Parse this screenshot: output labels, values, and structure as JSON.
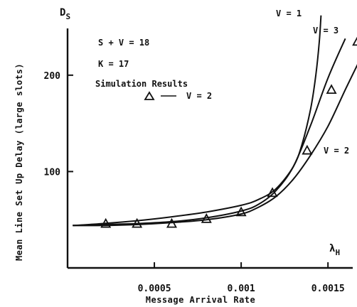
{
  "chart_data": {
    "type": "line",
    "xlabel": "Message Arrival Rate",
    "xlabel_symbol": "λ",
    "xlabel_symbol_sub": "H",
    "ylabel": "Mean Line Set Up Delay (large slots)",
    "ylabel_symbol": "D",
    "ylabel_symbol_sub": "S",
    "xlim": [
      0,
      0.0017
    ],
    "ylim": [
      0,
      250
    ],
    "x_axis_at": 0,
    "xticks": [
      {
        "value": 0.0005,
        "label": "0.0005"
      },
      {
        "value": 0.001,
        "label": "0.001"
      },
      {
        "value": 0.0015,
        "label": "0.0015"
      }
    ],
    "yticks": [
      {
        "value": 100,
        "label": "100"
      },
      {
        "value": 200,
        "label": "200"
      }
    ],
    "grid": false,
    "annotations": [
      "S + V = 18",
      "K = 17",
      "Simulation Results",
      "V = 2"
    ],
    "series": [
      {
        "name": "V = 1",
        "x": [
          3e-05,
          0.0002,
          0.0004,
          0.0006,
          0.0008,
          0.001,
          0.0011,
          0.0012,
          0.0013,
          0.00135,
          0.0014,
          0.00143,
          0.00145,
          0.00146
        ],
        "y": [
          44,
          46,
          49,
          53,
          58,
          65,
          71,
          82,
          105,
          128,
          165,
          200,
          235,
          262
        ]
      },
      {
        "name": "V = 3",
        "x": [
          3e-05,
          0.0002,
          0.0004,
          0.0006,
          0.0008,
          0.001,
          0.0011,
          0.0012,
          0.0013,
          0.0014,
          0.0015,
          0.0016
        ],
        "y": [
          44,
          45,
          46,
          48,
          52,
          59,
          66,
          80,
          105,
          148,
          197,
          238
        ]
      },
      {
        "name": "V = 2",
        "x": [
          3e-05,
          0.0002,
          0.0004,
          0.0006,
          0.0008,
          0.001,
          0.0011,
          0.0012,
          0.0013,
          0.0014,
          0.0015,
          0.0016,
          0.0017
        ],
        "y": [
          44,
          44,
          45,
          47,
          50,
          56,
          63,
          74,
          92,
          117,
          147,
          185,
          222
        ]
      }
    ],
    "simulation_results": {
      "name": "V = 2",
      "marker": "triangle",
      "x": [
        0.00022,
        0.0004,
        0.0006,
        0.0008,
        0.001,
        0.00118,
        0.00138,
        0.00152,
        0.00167
      ],
      "y": [
        46,
        46,
        46,
        51,
        58,
        78,
        122,
        185,
        235
      ]
    }
  }
}
